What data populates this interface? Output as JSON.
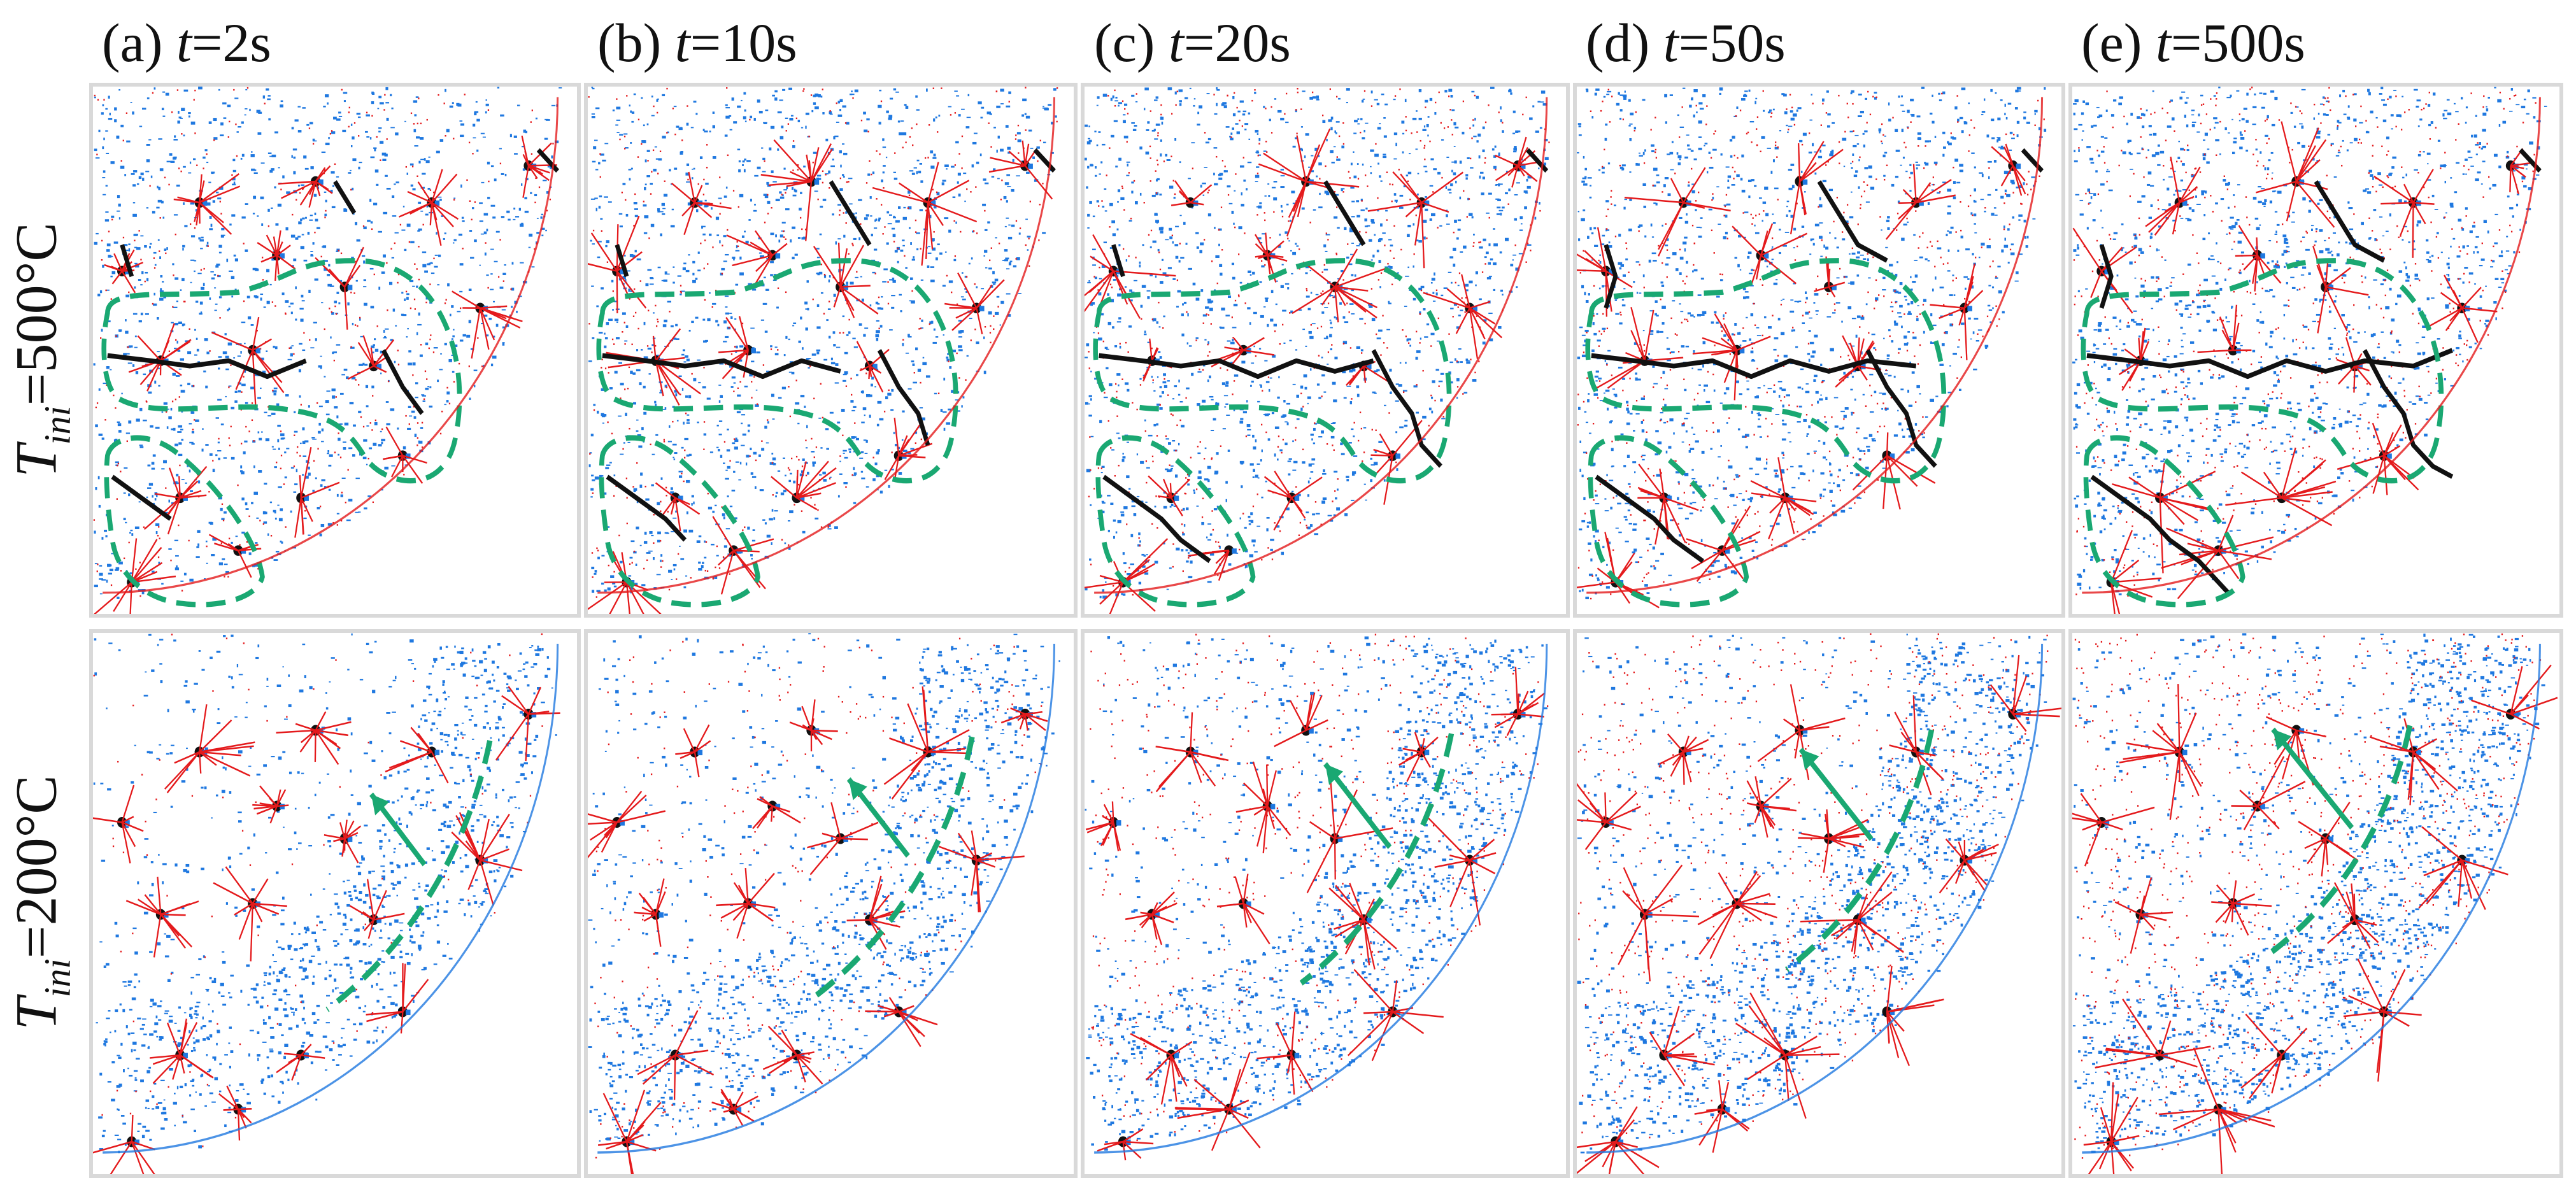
{
  "columns": [
    {
      "tag": "(a) ",
      "var": "t",
      "value": "=2s"
    },
    {
      "tag": "(b) ",
      "var": "t",
      "value": "=10s"
    },
    {
      "tag": "(c) ",
      "var": "t",
      "value": "=20s"
    },
    {
      "tag": "(d) ",
      "var": "t",
      "value": "=50s"
    },
    {
      "tag": "(e) ",
      "var": "t",
      "value": "=500s"
    }
  ],
  "rows": [
    {
      "var": "T",
      "sub": "ini",
      "value": "=500°C"
    },
    {
      "var": "T",
      "sub": "ini",
      "value": "=200°C"
    }
  ],
  "colors": {
    "tensile_crack": "#e41a1c",
    "compressive": "#1f78e0",
    "macro_crack": "#111111",
    "highlight": "#1aa872",
    "panel_border": "#d9d9d9"
  }
}
